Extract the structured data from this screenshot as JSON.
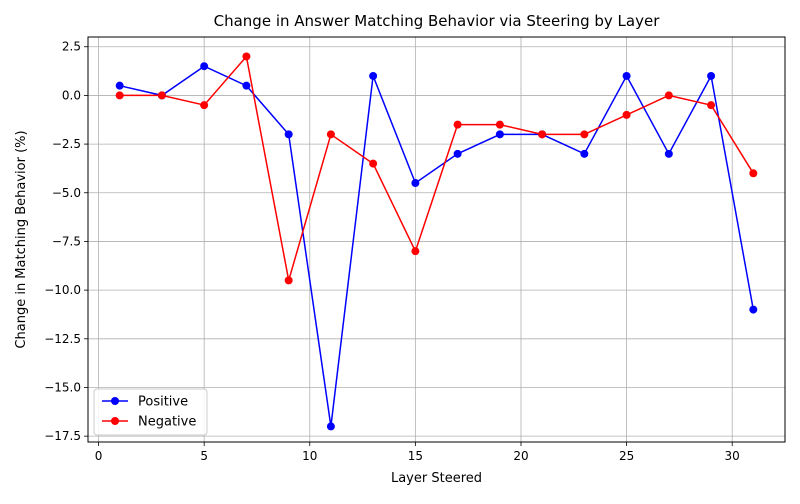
{
  "chart_data": {
    "type": "line",
    "title": "Change in Answer Matching Behavior via Steering by Layer",
    "xlabel": "Layer Steered",
    "ylabel": "Change in Matching Behavior (%)",
    "x": [
      1,
      3,
      5,
      7,
      9,
      11,
      13,
      15,
      17,
      19,
      21,
      23,
      25,
      27,
      29,
      31
    ],
    "xlim": [
      -0.5,
      32.5
    ],
    "ylim": [
      -17.8,
      3.0
    ],
    "xticks": [
      0,
      5,
      10,
      15,
      20,
      25,
      30
    ],
    "xtick_labels": [
      "0",
      "5",
      "10",
      "15",
      "20",
      "25",
      "30"
    ],
    "yticks": [
      2.5,
      0.0,
      -2.5,
      -5.0,
      -7.5,
      -10.0,
      -12.5,
      -15.0,
      -17.5
    ],
    "ytick_labels": [
      "2.5",
      "0.0",
      "−2.5",
      "−5.0",
      "−7.5",
      "−10.0",
      "−12.5",
      "−15.0",
      "−17.5"
    ],
    "grid": true,
    "legend_position": "lower-left",
    "series": [
      {
        "name": "Positive",
        "color": "#0000ff",
        "values": [
          0.5,
          0.0,
          1.5,
          0.5,
          -2.0,
          -17.0,
          1.0,
          -4.5,
          -3.0,
          -2.0,
          -2.0,
          -3.0,
          1.0,
          -3.0,
          1.0,
          -11.0
        ]
      },
      {
        "name": "Negative",
        "color": "#ff0000",
        "values": [
          0.0,
          0.0,
          -0.5,
          2.0,
          -9.5,
          -2.0,
          -3.5,
          -8.0,
          -1.5,
          -1.5,
          -2.0,
          -2.0,
          -1.0,
          0.0,
          -0.5,
          -4.0
        ]
      }
    ]
  }
}
